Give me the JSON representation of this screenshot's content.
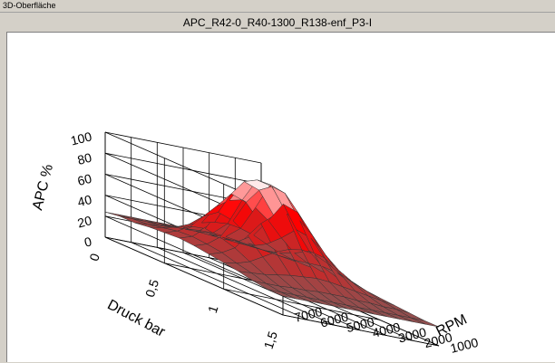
{
  "window": {
    "title": "3D-Oberfläche"
  },
  "chart_data": {
    "type": "surface",
    "title": "APC_R42-0_R40-1300_R138-enf_P3-I",
    "zlabel": "APC %",
    "xlabel": "RPM",
    "ylabel": "Druck bar",
    "x_ticks": [
      "1000",
      "2000",
      "3000",
      "4000",
      "5000",
      "6000",
      "7000"
    ],
    "y_ticks": [
      "0",
      "0,5",
      "1",
      "1,5"
    ],
    "z_ticks": [
      "0",
      "20",
      "40",
      "60",
      "80",
      "100"
    ],
    "xlim": [
      1000,
      7000
    ],
    "ylim": [
      0,
      1.5
    ],
    "zlim": [
      0,
      100
    ],
    "grid": true,
    "colors": {
      "low": "#6b6b6b",
      "high": "#ff0000",
      "peak": "#ffffff"
    },
    "rpm": [
      1000,
      1500,
      2000,
      2500,
      3000,
      3500,
      4000,
      4500,
      5000,
      5500,
      6000,
      6500,
      7000
    ],
    "druck": [
      0,
      0.125,
      0.25,
      0.375,
      0.5,
      0.625,
      0.75,
      0.875,
      1.0,
      1.125,
      1.25,
      1.375,
      1.5
    ],
    "apc": [
      [
        20,
        21,
        21,
        22,
        23,
        23,
        24,
        24,
        24,
        24,
        24,
        24,
        24
      ],
      [
        20,
        21,
        22,
        23,
        24,
        25,
        26,
        26,
        26,
        26,
        26,
        26,
        26
      ],
      [
        20,
        22,
        24,
        26,
        28,
        30,
        31,
        31,
        30,
        29,
        28,
        27,
        26
      ],
      [
        21,
        24,
        28,
        34,
        40,
        44,
        46,
        45,
        42,
        38,
        33,
        30,
        28
      ],
      [
        22,
        27,
        34,
        46,
        60,
        70,
        75,
        72,
        64,
        52,
        40,
        33,
        29
      ],
      [
        23,
        30,
        42,
        60,
        82,
        98,
        100,
        96,
        82,
        62,
        44,
        34,
        30
      ],
      [
        23,
        30,
        42,
        58,
        80,
        96,
        100,
        94,
        80,
        60,
        42,
        33,
        29
      ],
      [
        22,
        28,
        36,
        48,
        64,
        76,
        80,
        76,
        66,
        52,
        38,
        31,
        27
      ],
      [
        21,
        25,
        30,
        36,
        44,
        50,
        52,
        50,
        45,
        38,
        31,
        27,
        25
      ],
      [
        20,
        22,
        24,
        26,
        28,
        30,
        31,
        30,
        29,
        27,
        25,
        24,
        23
      ],
      [
        19,
        20,
        20,
        21,
        21,
        22,
        22,
        22,
        21,
        21,
        20,
        20,
        20
      ],
      [
        18,
        18,
        18,
        18,
        18,
        18,
        18,
        18,
        18,
        18,
        18,
        18,
        18
      ],
      [
        18,
        18,
        18,
        18,
        18,
        18,
        18,
        18,
        18,
        18,
        18,
        18,
        18
      ]
    ]
  }
}
